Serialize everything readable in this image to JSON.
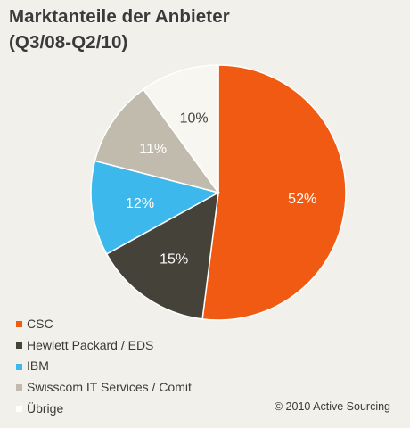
{
  "chart_data": {
    "type": "pie",
    "title": "Marktanteile der Anbieter",
    "subtitle": "(Q3/08-Q2/10)",
    "slices": [
      {
        "label": "CSC",
        "value": 52,
        "display": "52%",
        "color": "#f05a12"
      },
      {
        "label": "Hewlett Packard / EDS",
        "value": 15,
        "display": "15%",
        "color": "#45423a"
      },
      {
        "label": "IBM",
        "value": 12,
        "display": "12%",
        "color": "#3db8ec"
      },
      {
        "label": "Swisscom IT Services / Comit",
        "value": 11,
        "display": "11%",
        "color": "#c0bbac"
      },
      {
        "label": "Übrige",
        "value": 10,
        "display": "10%",
        "color": "#f7f6f1"
      }
    ],
    "legend_position": "bottom-left",
    "label_color": "#ffffff",
    "other_label_color": "#444444"
  },
  "footer": {
    "copyright": "© 2010 Active Sourcing"
  }
}
